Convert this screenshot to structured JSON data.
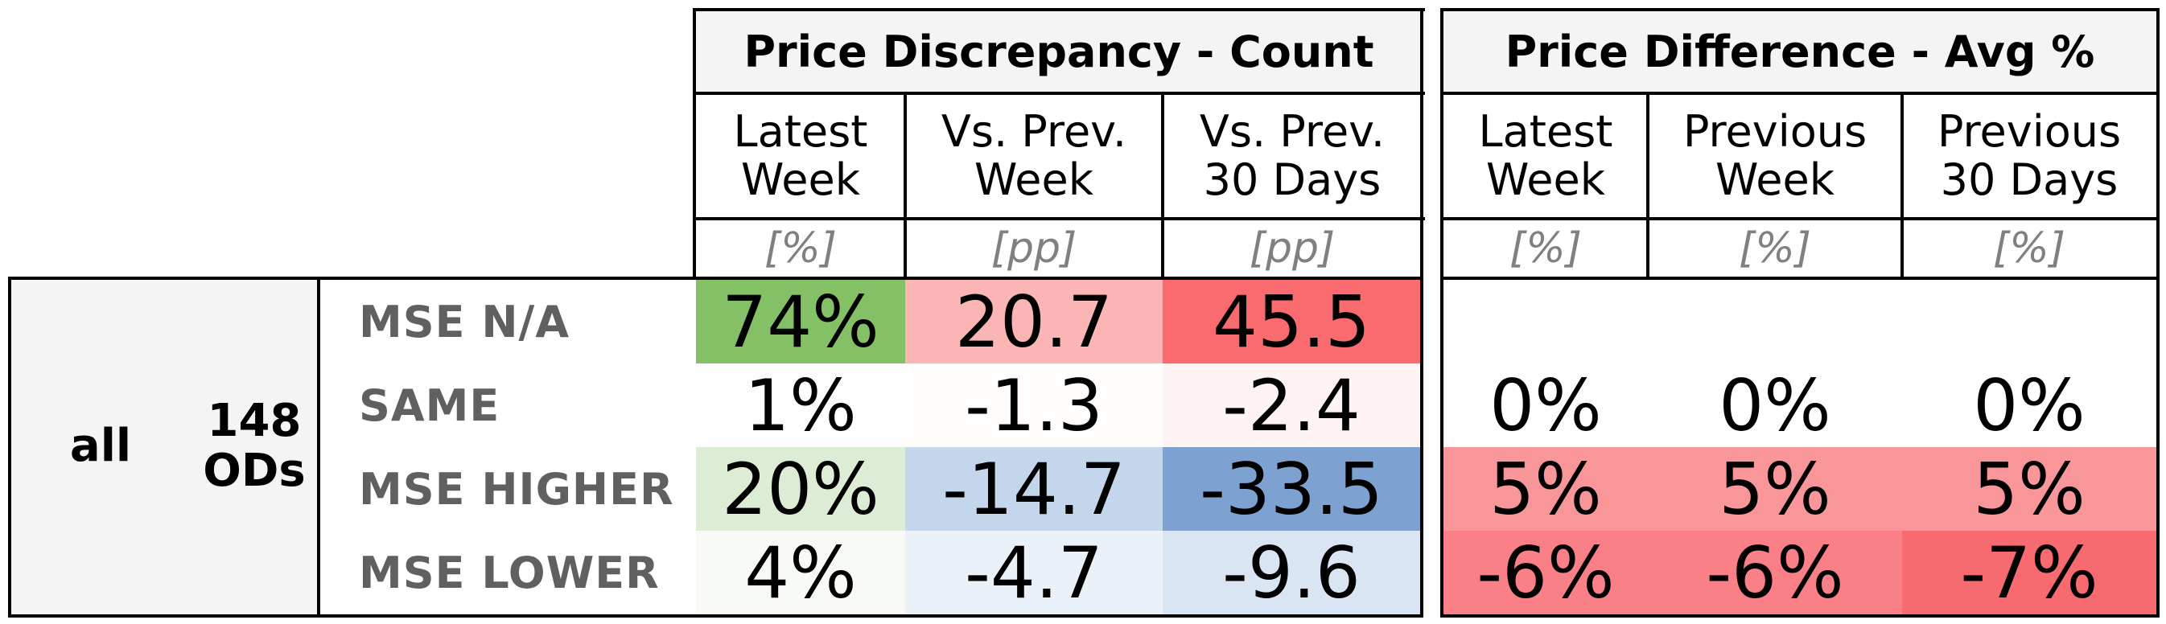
{
  "groups": {
    "count": {
      "title": "Price Discrepancy - Count",
      "columns": [
        {
          "label": "Latest\nWeek",
          "unit": "[%]"
        },
        {
          "label": "Vs. Prev.\nWeek",
          "unit": "[pp]"
        },
        {
          "label": "Vs. Prev.\n30 Days",
          "unit": "[pp]"
        }
      ]
    },
    "avg": {
      "title": "Price Difference - Avg %",
      "columns": [
        {
          "label": "Latest\nWeek",
          "unit": "[%]"
        },
        {
          "label": "Previous\nWeek",
          "unit": "[%]"
        },
        {
          "label": "Previous\n30 Days",
          "unit": "[%]"
        }
      ]
    }
  },
  "segment": {
    "name": "all",
    "count_label": "148\nODs"
  },
  "rows": [
    {
      "label": "MSE N/A",
      "count": [
        "74%",
        "20.7",
        "45.5"
      ],
      "count_colors": [
        "#84c065",
        "#fbb5b5",
        "#f96b6e"
      ],
      "avg": [
        "",
        "",
        ""
      ],
      "avg_colors": [
        "#ffffff",
        "#ffffff",
        "#ffffff"
      ]
    },
    {
      "label": "SAME",
      "count": [
        "1%",
        "-1.3",
        "-2.4"
      ],
      "count_colors": [
        "#fcfdfc",
        "#fffcfc",
        "#fff3f3"
      ],
      "avg": [
        "0%",
        "0%",
        "0%"
      ],
      "avg_colors": [
        "#ffffff",
        "#ffffff",
        "#ffffff"
      ]
    },
    {
      "label": "MSE HIGHER",
      "count": [
        "20%",
        "-14.7",
        "-33.5"
      ],
      "count_colors": [
        "#dcecd5",
        "#c3d6ec",
        "#7da2d2"
      ],
      "avg": [
        "5%",
        "5%",
        "5%"
      ],
      "avg_colors": [
        "#f9969a",
        "#f9969a",
        "#f9969a"
      ]
    },
    {
      "label": "MSE LOWER",
      "count": [
        "4%",
        "-4.7",
        "-9.6"
      ],
      "count_colors": [
        "#f7faf5",
        "#ebf1f9",
        "#d9e5f3"
      ],
      "avg": [
        "-6%",
        "-6%",
        "-7%"
      ],
      "avg_colors": [
        "#f88086",
        "#f88086",
        "#f76a70"
      ]
    }
  ]
}
